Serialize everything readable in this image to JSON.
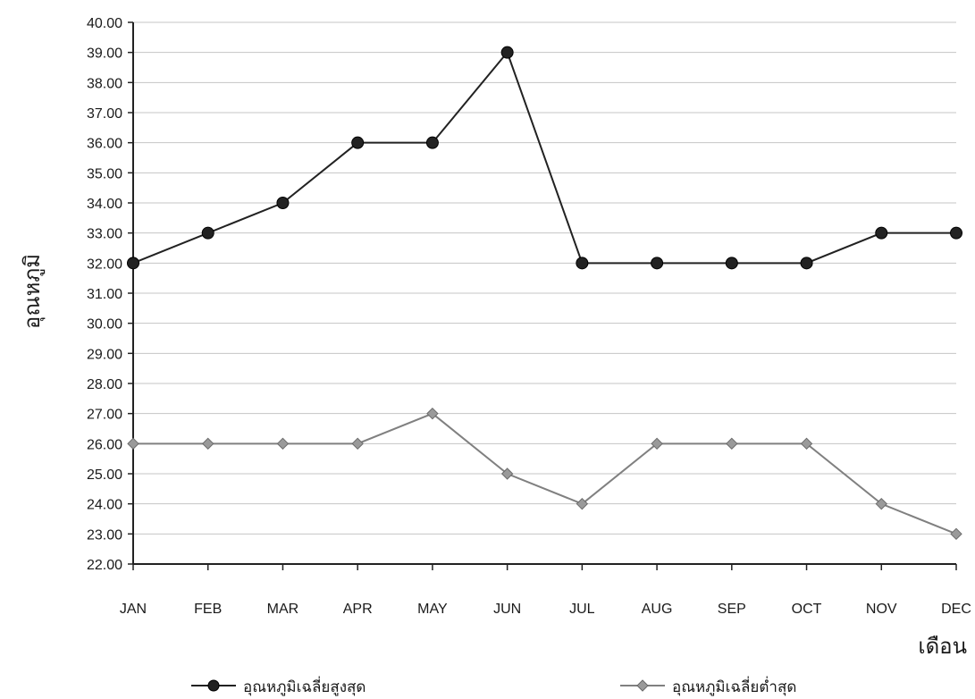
{
  "chart_data": {
    "type": "line",
    "xlabel": "เดือน",
    "ylabel": "อุณหภูมิ",
    "categories": [
      "JAN",
      "FEB",
      "MAR",
      "APR",
      "MAY",
      "JUN",
      "JUL",
      "AUG",
      "SEP",
      "OCT",
      "NOV",
      "DEC"
    ],
    "ylim": [
      22,
      40
    ],
    "ytick_step": 1,
    "ytick_decimals": 2,
    "grid": true,
    "legend_position": "bottom",
    "series": [
      {
        "name": "อุณหภูมิเฉลี่ยสูงสุด",
        "values": [
          32,
          33,
          34,
          36,
          36,
          39,
          32,
          32,
          32,
          32,
          33,
          33
        ],
        "color": "#222222",
        "marker": "circle"
      },
      {
        "name": "อุณหภูมิเฉลี่ยต่ำสุด",
        "values": [
          26,
          26,
          26,
          26,
          27,
          25,
          24,
          26,
          26,
          26,
          24,
          23
        ],
        "color": "#808080",
        "marker": "diamond"
      }
    ]
  }
}
